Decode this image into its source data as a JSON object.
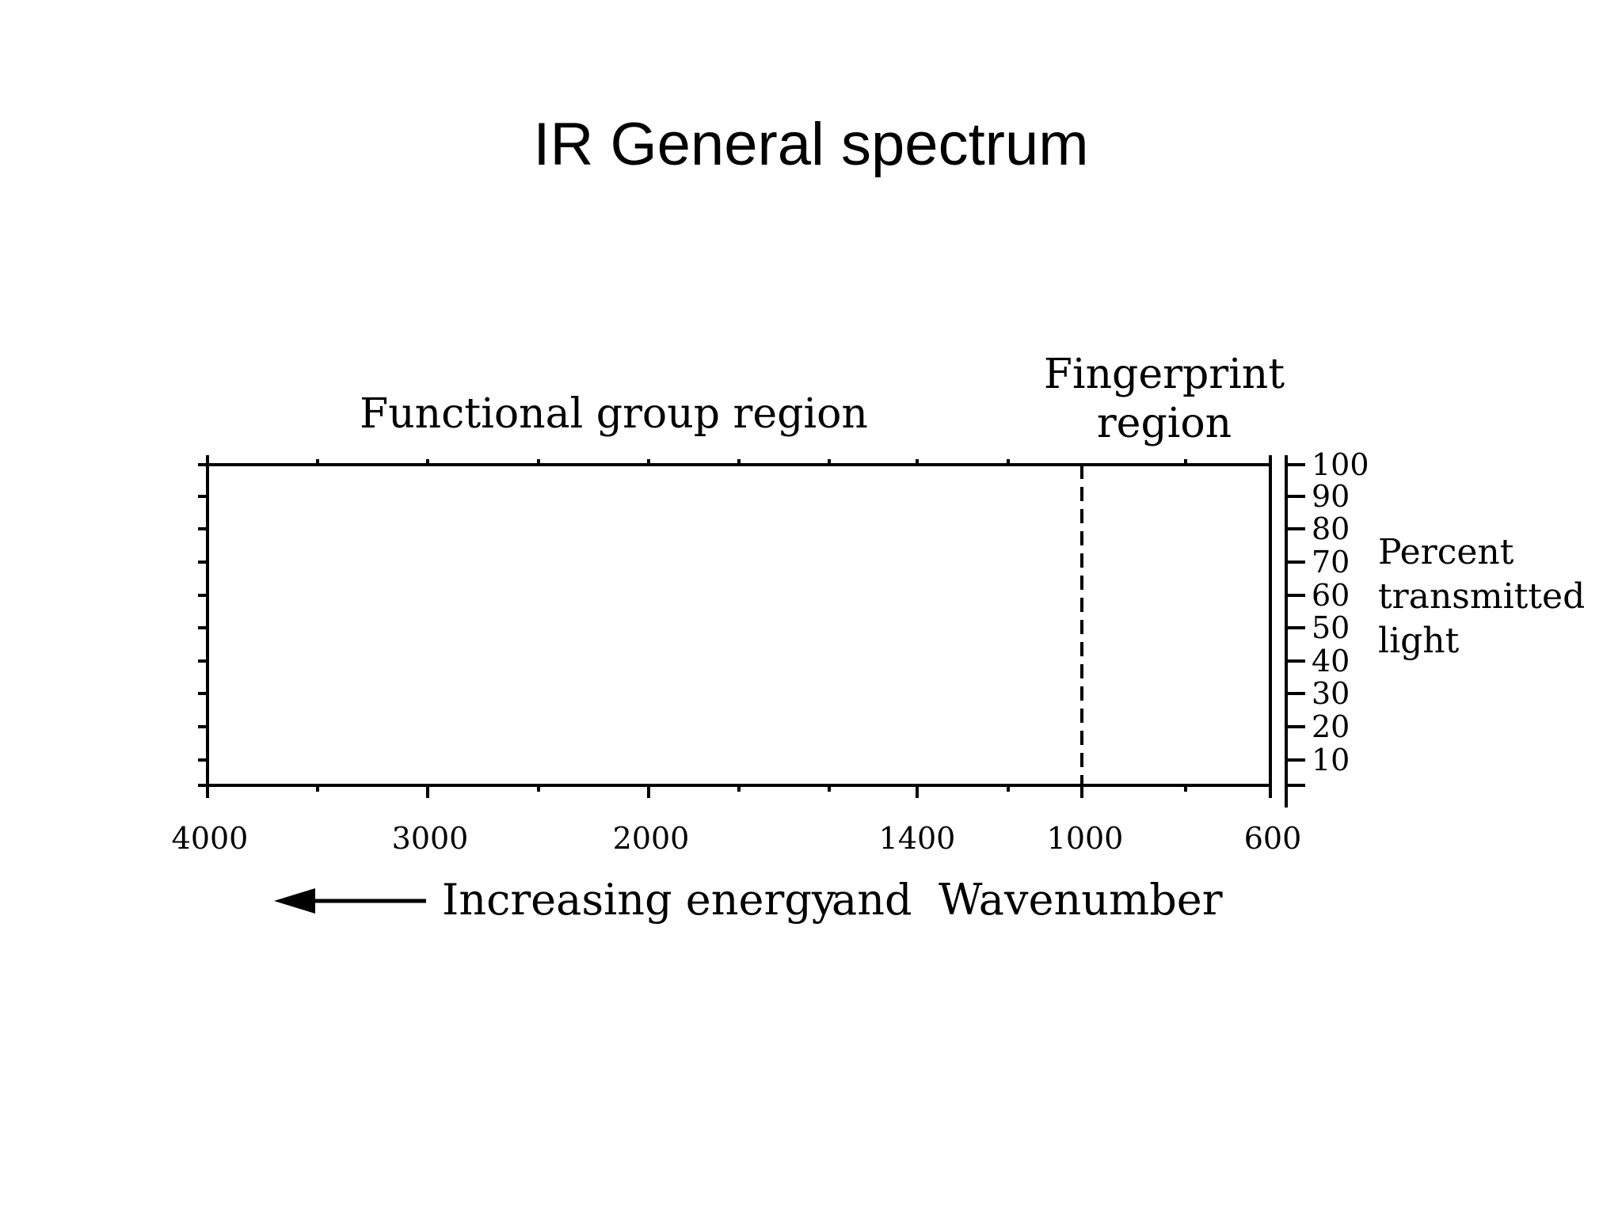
{
  "title": "IR General spectrum",
  "regions": {
    "functional": "Functional group region",
    "fingerprint_line1": "Fingerprint",
    "fingerprint_line2": "region"
  },
  "x_axis": {
    "tick_labels": [
      "4000",
      "3000",
      "2000",
      "1400",
      "1000",
      "600"
    ],
    "caption_part1": "Increasing energy",
    "caption_part2": "and",
    "caption_part3": "Wavenumber",
    "direction": "arrow pointing left (toward higher wavenumber)"
  },
  "y_axis": {
    "tick_labels": [
      "100",
      "90",
      "80",
      "70",
      "60",
      "50",
      "40",
      "30",
      "20",
      "10"
    ],
    "caption_line1": "Percent",
    "caption_line2": "transmitted",
    "caption_line3": "light",
    "position": "right"
  },
  "divider": {
    "style": "dashed",
    "at": "1000"
  },
  "colors": {
    "ink": "#000000",
    "background": "#ffffff"
  }
}
